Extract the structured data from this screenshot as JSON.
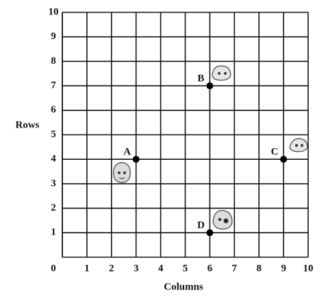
{
  "chart_data": {
    "type": "scatter",
    "x_label": "Columns",
    "y_label": "Rows",
    "xlim": [
      0,
      10
    ],
    "ylim": [
      0,
      10
    ],
    "xticks": [
      0,
      1,
      2,
      3,
      4,
      5,
      6,
      7,
      8,
      9,
      10
    ],
    "yticks": [
      1,
      2,
      3,
      4,
      5,
      6,
      7,
      8,
      9,
      10
    ],
    "grid": true,
    "series": [
      {
        "color": "#000000",
        "labels": [
          "A",
          "B",
          "C",
          "D"
        ],
        "x": [
          3,
          6,
          9,
          6
        ],
        "values": [
          4,
          7,
          4,
          1
        ]
      }
    ]
  }
}
